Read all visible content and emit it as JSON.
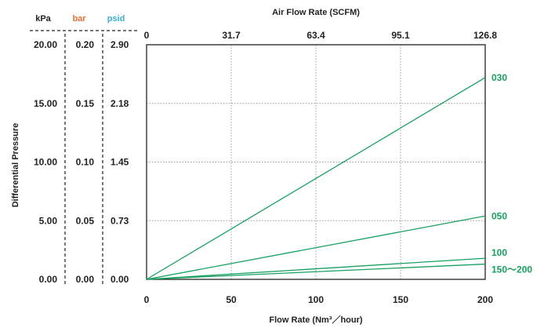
{
  "chart_data": {
    "type": "line",
    "title": "",
    "xlabel": "Flow Rate (Nm³／hour)",
    "x2label": "Air Flow Rate (SCFM)",
    "ylabel": "Differential Pressure",
    "xlim": [
      0,
      200
    ],
    "ylim": [
      0,
      20
    ],
    "x_ticks": [
      "0",
      "50",
      "100",
      "150",
      "200"
    ],
    "x2_ticks": [
      "0",
      "31.7",
      "63.4",
      "95.1",
      "126.8"
    ],
    "y_units": [
      {
        "name": "kPa",
        "color": "#222222",
        "ticks": [
          "0.00",
          "5.00",
          "10.00",
          "15.00",
          "20.00"
        ]
      },
      {
        "name": "bar",
        "color": "#e07030",
        "ticks": [
          "0.00",
          "0.05",
          "0.10",
          "0.15",
          "0.20"
        ]
      },
      {
        "name": "psid",
        "color": "#38b0d0",
        "ticks": [
          "0.00",
          "0.73",
          "1.45",
          "2.18",
          "2.90"
        ]
      }
    ],
    "y_tick_values": [
      0,
      5,
      10,
      15,
      20
    ],
    "grid": true,
    "series_color": "#18a060",
    "series": [
      {
        "name": "030",
        "x": [
          0,
          200
        ],
        "y": [
          0,
          17.2
        ]
      },
      {
        "name": "050",
        "x": [
          0,
          200
        ],
        "y": [
          0,
          5.4
        ]
      },
      {
        "name": "100",
        "x": [
          0,
          200
        ],
        "y": [
          0,
          1.8
        ]
      },
      {
        "name": "150～200",
        "x": [
          0,
          200
        ],
        "y": [
          0,
          1.3
        ]
      }
    ]
  }
}
